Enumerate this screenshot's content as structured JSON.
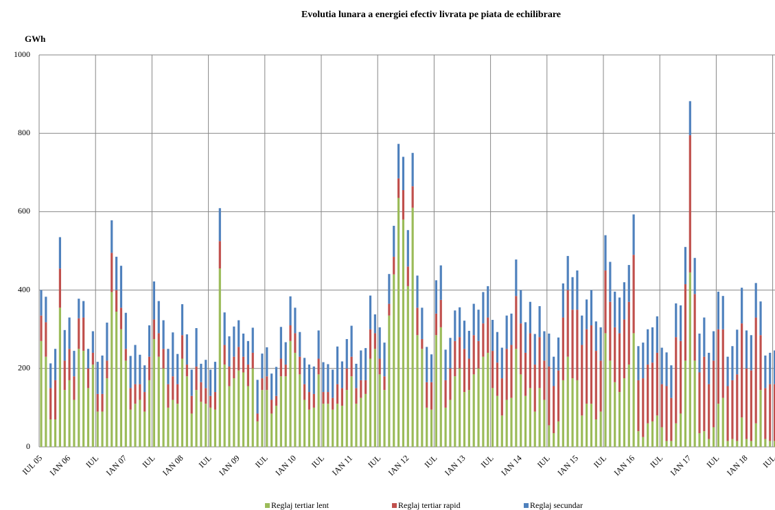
{
  "chart_data": {
    "type": "bar",
    "stacked": true,
    "title": "Evolutia lunara a energiei efectiv livrata pe piata de echilibrare",
    "y_label": "GWh",
    "ylim": [
      0,
      1000
    ],
    "yticks": [
      0,
      200,
      400,
      600,
      800,
      1000
    ],
    "grid": true,
    "categories": [
      "IUL 05",
      null,
      null,
      null,
      null,
      null,
      "IAN 06",
      null,
      null,
      null,
      null,
      null,
      "IUL",
      null,
      null,
      null,
      null,
      null,
      "IAN 07",
      null,
      null,
      null,
      null,
      null,
      "IUL",
      null,
      null,
      null,
      null,
      null,
      "IAN 08",
      null,
      null,
      null,
      null,
      null,
      "IUL",
      null,
      null,
      null,
      null,
      null,
      "IAN 09",
      null,
      null,
      null,
      null,
      null,
      "IUL",
      null,
      null,
      null,
      null,
      null,
      "IAN 10",
      null,
      null,
      null,
      null,
      null,
      "IUL",
      null,
      null,
      null,
      null,
      null,
      "IAN 11",
      null,
      null,
      null,
      null,
      null,
      "IUL",
      null,
      null,
      null,
      null,
      null,
      "IAN 12",
      null,
      null,
      null,
      null,
      null,
      "IUL",
      null,
      null,
      null,
      null,
      null,
      "IAN 13",
      null,
      null,
      null,
      null,
      null,
      "IUL",
      null,
      null,
      null,
      null,
      null,
      "IAN 14",
      null,
      null,
      null,
      null,
      null,
      "IUL",
      null,
      null,
      null,
      null,
      null,
      "IAN 15",
      null,
      null,
      null,
      null,
      null,
      "IUL",
      null,
      null,
      null,
      null,
      null,
      "IAN 16",
      null,
      null,
      null,
      null,
      null,
      "IUL",
      null,
      null,
      null,
      null,
      null,
      "IAN 17",
      null,
      null,
      null,
      null,
      null,
      "IUL",
      null,
      null,
      null,
      null,
      null,
      "IAN 18",
      null,
      null,
      null,
      null,
      null,
      "IUL"
    ],
    "series": [
      {
        "name": "Reglaj tertiar lent",
        "color": "#9bbb59",
        "values": [
          270,
          230,
          70,
          70,
          355,
          145,
          170,
          120,
          250,
          245,
          150,
          210,
          90,
          90,
          175,
          395,
          345,
          300,
          220,
          95,
          110,
          120,
          90,
          170,
          275,
          230,
          200,
          100,
          120,
          110,
          225,
          180,
          85,
          145,
          115,
          110,
          100,
          95,
          455,
          210,
          155,
          175,
          195,
          190,
          155,
          200,
          65,
          145,
          145,
          85,
          105,
          180,
          180,
          270,
          240,
          185,
          120,
          95,
          100,
          185,
          110,
          110,
          95,
          110,
          105,
          145,
          180,
          110,
          125,
          135,
          225,
          250,
          185,
          145,
          335,
          440,
          635,
          580,
          410,
          610,
          285,
          250,
          100,
          95,
          285,
          305,
          100,
          120,
          180,
          200,
          140,
          145,
          185,
          200,
          230,
          240,
          150,
          130,
          80,
          120,
          125,
          250,
          185,
          130,
          150,
          90,
          150,
          120,
          55,
          35,
          65,
          170,
          230,
          175,
          170,
          80,
          110,
          110,
          70,
          90,
          290,
          220,
          165,
          140,
          175,
          210,
          290,
          40,
          25,
          60,
          65,
          80,
          50,
          15,
          15,
          60,
          85,
          220,
          445,
          220,
          35,
          40,
          20,
          50,
          110,
          125,
          15,
          20,
          15,
          75,
          20,
          15,
          60,
          145,
          20,
          15,
          15
        ]
      },
      {
        "name": "Reglaj tertiar rapid",
        "color": "#c0504d",
        "values": [
          65,
          88,
          80,
          100,
          100,
          75,
          80,
          60,
          78,
          85,
          50,
          30,
          45,
          45,
          45,
          100,
          55,
          55,
          30,
          55,
          50,
          40,
          50,
          60,
          50,
          60,
          50,
          60,
          60,
          50,
          60,
          30,
          45,
          60,
          50,
          40,
          30,
          45,
          70,
          50,
          50,
          55,
          60,
          40,
          55,
          40,
          20,
          30,
          35,
          35,
          25,
          45,
          30,
          40,
          50,
          45,
          40,
          45,
          35,
          40,
          30,
          30,
          30,
          50,
          45,
          55,
          50,
          40,
          45,
          35,
          75,
          40,
          40,
          35,
          30,
          45,
          50,
          75,
          50,
          55,
          70,
          25,
          65,
          70,
          55,
          70,
          70,
          80,
          90,
          80,
          110,
          80,
          100,
          70,
          85,
          90,
          95,
          85,
          95,
          130,
          135,
          135,
          130,
          110,
          140,
          120,
          130,
          100,
          150,
          120,
          130,
          160,
          170,
          175,
          180,
          180,
          190,
          200,
          175,
          130,
          160,
          150,
          140,
          150,
          150,
          160,
          200,
          130,
          150,
          150,
          150,
          160,
          110,
          140,
          110,
          220,
          185,
          195,
          350,
          170,
          155,
          190,
          140,
          170,
          190,
          175,
          140,
          150,
          170,
          240,
          180,
          180,
          270,
          140,
          130,
          145,
          145
        ]
      },
      {
        "name": "Reglaj secundar",
        "color": "#4f81bd",
        "values": [
          65,
          65,
          63,
          80,
          80,
          78,
          80,
          65,
          50,
          42,
          50,
          55,
          82,
          98,
          97,
          83,
          85,
          107,
          92,
          82,
          100,
          75,
          68,
          80,
          97,
          82,
          73,
          90,
          112,
          77,
          79,
          77,
          67,
          98,
          47,
          72,
          67,
          77,
          84,
          83,
          77,
          77,
          68,
          59,
          60,
          64,
          86,
          63,
          74,
          67,
          74,
          81,
          57,
          74,
          65,
          63,
          67,
          70,
          70,
          72,
          76,
          71,
          72,
          96,
          68,
          75,
          79,
          62,
          76,
          82,
          86,
          48,
          80,
          86,
          76,
          79,
          88,
          85,
          93,
          85,
          82,
          80,
          90,
          71,
          85,
          88,
          78,
          78,
          78,
          76,
          72,
          71,
          80,
          80,
          80,
          80,
          79,
          78,
          78,
          85,
          80,
          93,
          85,
          78,
          80,
          78,
          79,
          75,
          84,
          75,
          84,
          87,
          87,
          83,
          100,
          75,
          76,
          90,
          75,
          85,
          90,
          102,
          91,
          91,
          95,
          94,
          103,
          87,
          91,
          90,
          90,
          93,
          93,
          86,
          83,
          86,
          91,
          95,
          87,
          92,
          99,
          100,
          80,
          75,
          96,
          85,
          75,
          87,
          114,
          91,
          97,
          90,
          88,
          86,
          83,
          80,
          86
        ]
      }
    ]
  }
}
